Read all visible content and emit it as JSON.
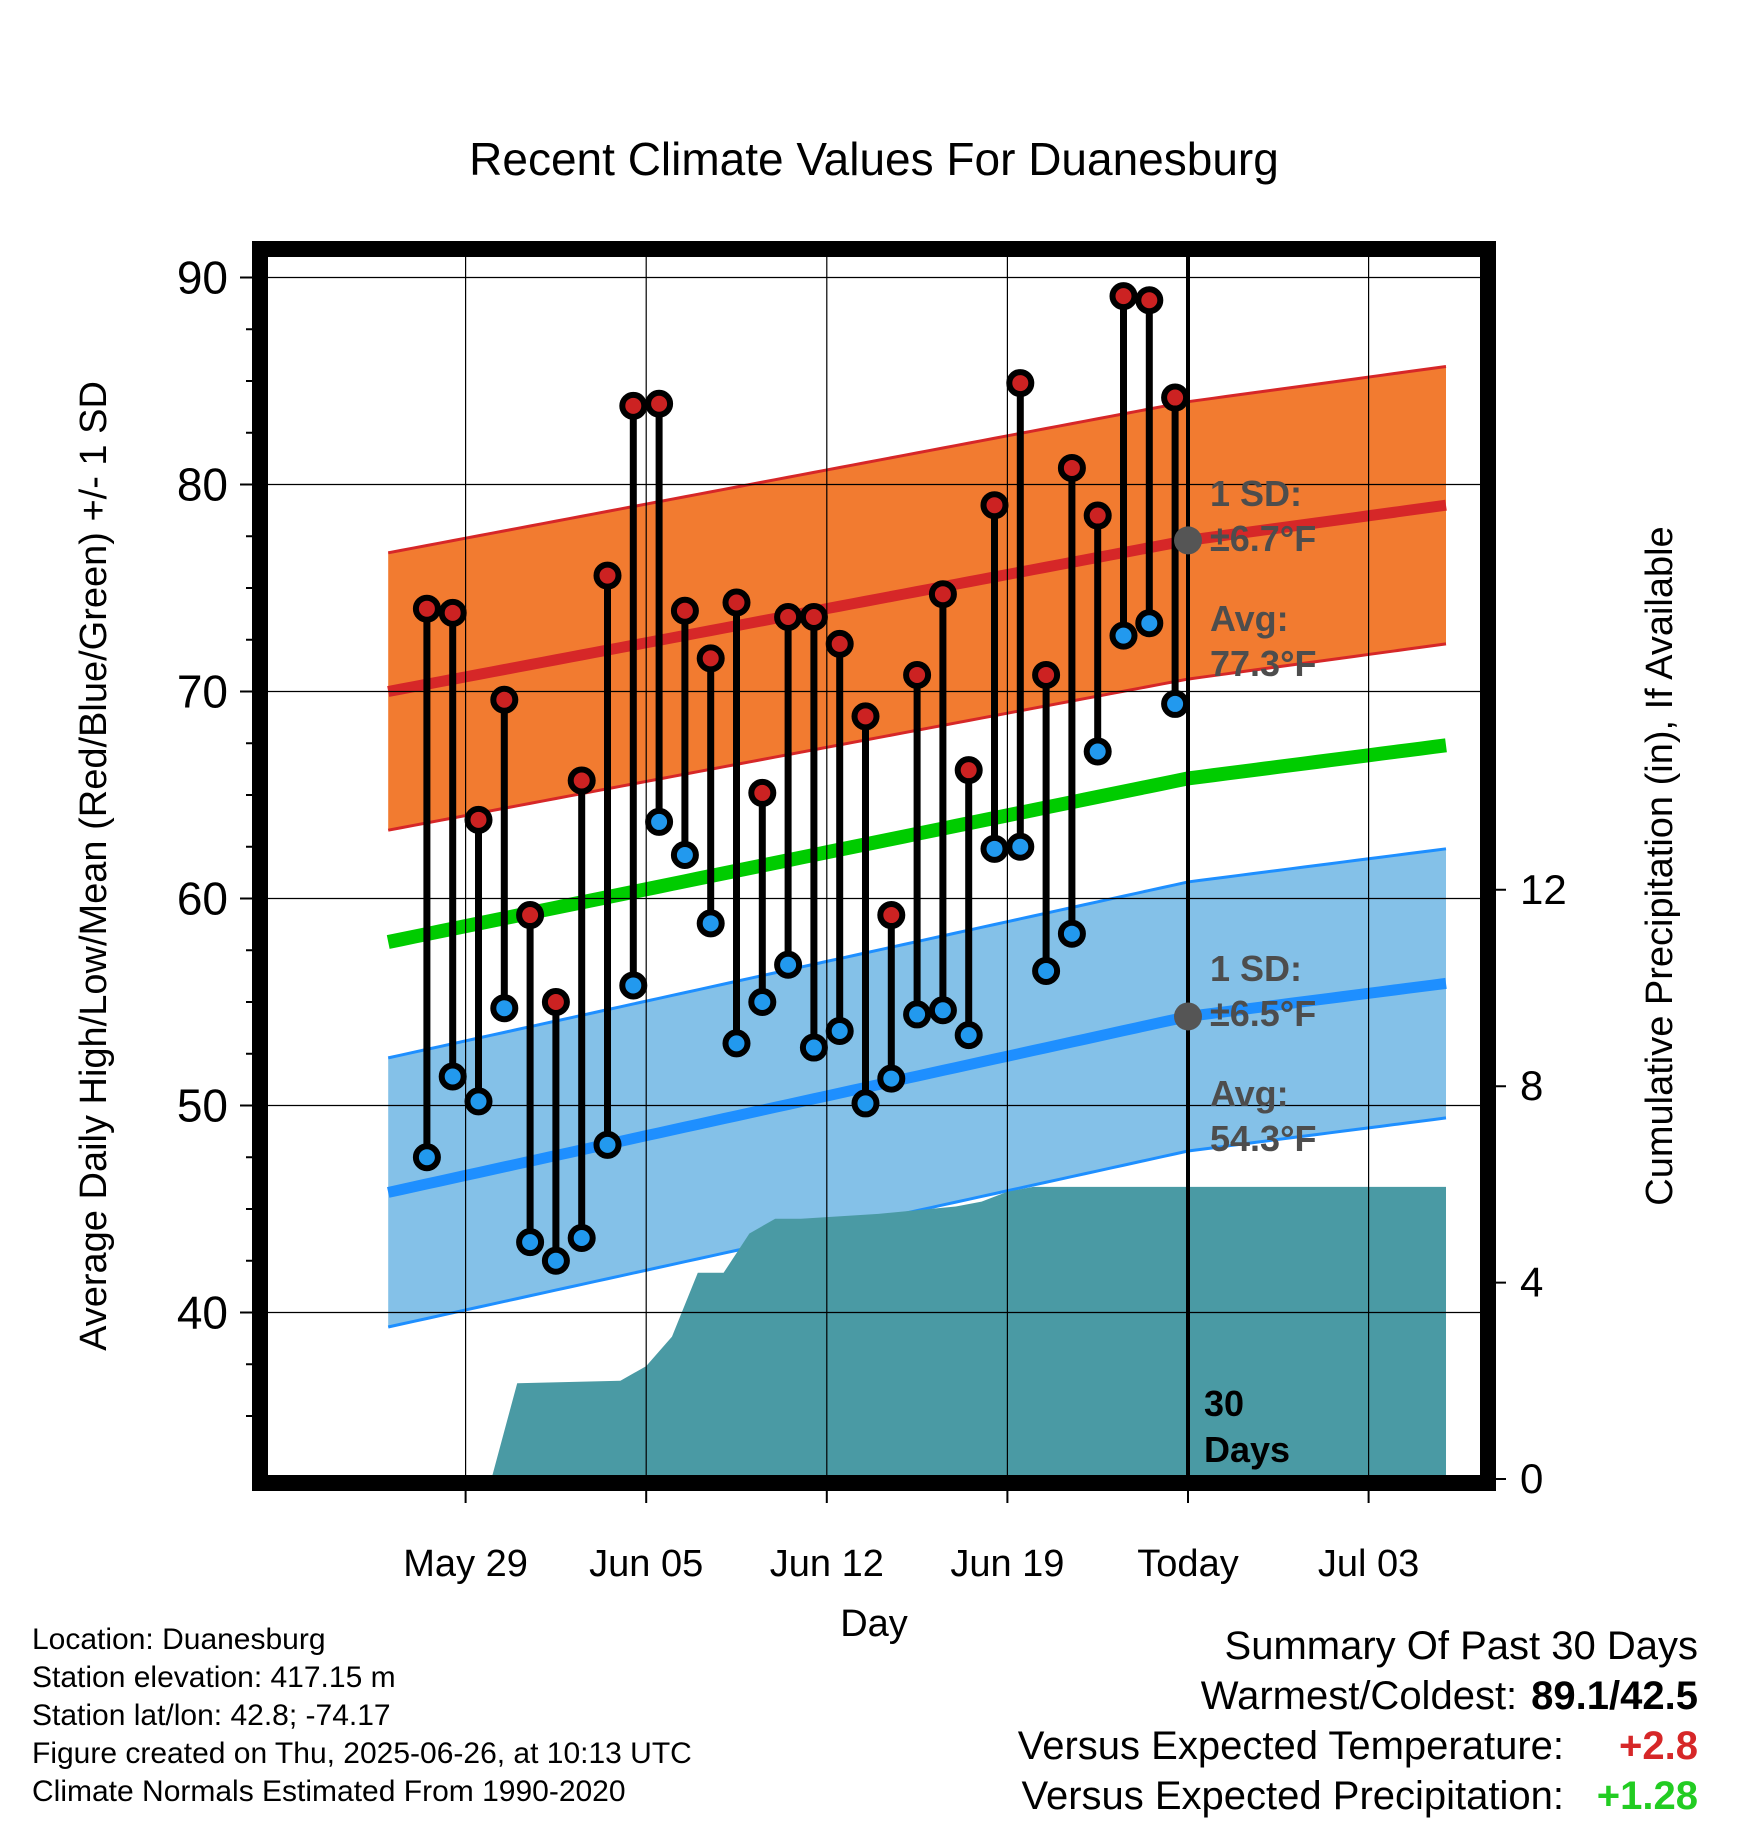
{
  "chart_data": {
    "type": "line",
    "title": "Recent Climate Values For Duanesburg",
    "xlabel": "Day",
    "ylabel": "Average Daily High/Low/Mean (Red/Blue/Green) +/- 1 SD",
    "y2label": "Cumulative Precipitation (in), If Available",
    "x_tick_labels": [
      "May 29",
      "Jun 05",
      "Jun 12",
      "Jun 19",
      "Today",
      "Jul 03"
    ],
    "y_ticks": [
      "40",
      "50",
      "60",
      "70",
      "80",
      "90"
    ],
    "y2_ticks": [
      "0",
      "4",
      "8",
      "12"
    ],
    "ylim": [
      35,
      95
    ],
    "y2lim": [
      0,
      20
    ],
    "days": [
      -30,
      -29,
      -28,
      -27,
      -26,
      -25,
      -24,
      -23,
      -22,
      -21,
      -20,
      -19,
      -18,
      -17,
      -16,
      -15,
      -14,
      -13,
      -12,
      -11,
      -10,
      -9,
      -8,
      -7,
      -6,
      -5,
      -4,
      -3,
      -2,
      -1
    ],
    "daily_high": [
      74.0,
      73.8,
      63.8,
      69.6,
      59.2,
      55.0,
      65.7,
      75.6,
      83.8,
      83.9,
      73.9,
      71.6,
      74.3,
      65.1,
      73.6,
      73.6,
      72.3,
      68.8,
      59.2,
      70.8,
      74.7,
      66.2,
      79.0,
      84.9,
      70.8,
      80.8,
      78.5,
      89.1,
      88.9,
      84.2
    ],
    "daily_low": [
      47.5,
      51.4,
      50.2,
      54.7,
      43.4,
      42.5,
      43.6,
      48.1,
      55.8,
      63.7,
      62.1,
      58.8,
      53.0,
      55.0,
      56.8,
      52.8,
      53.6,
      50.1,
      51.3,
      54.4,
      54.6,
      53.4,
      62.4,
      62.5,
      56.5,
      58.3,
      67.1,
      72.7,
      73.3,
      69.4
    ],
    "normal_high_x": [
      -31,
      0,
      10
    ],
    "normal_high": [
      70.0,
      77.3,
      79.0
    ],
    "normal_high_sd": 6.7,
    "normal_low_x": [
      -31,
      0,
      10
    ],
    "normal_low": [
      45.8,
      54.3,
      55.9
    ],
    "normal_low_sd": 6.5,
    "normal_mean_x": [
      -31,
      0,
      10
    ],
    "normal_mean": [
      57.9,
      65.8,
      67.4
    ],
    "precip_x": [
      -27,
      -26,
      -22,
      -21,
      -20,
      -19,
      -18,
      -17,
      -16,
      -15,
      -12,
      -9,
      -8,
      -7,
      -6,
      -3,
      10
    ],
    "precip_cumulative": [
      0.0,
      1.95,
      2.0,
      2.3,
      2.9,
      4.2,
      4.2,
      5.0,
      5.3,
      5.3,
      5.4,
      5.55,
      5.65,
      5.85,
      5.95,
      5.95,
      5.95
    ],
    "annotations": {
      "high_sd_line1": "1 SD:",
      "high_sd_line2": "±6.7°F",
      "high_avg_line1": "Avg:",
      "high_avg_line2": "77.3°F",
      "low_sd_line1": "1 SD:",
      "low_sd_line2": "±6.5°F",
      "low_avg_line1": "Avg:",
      "low_avg_line2": "54.3°F",
      "days_line1": "30",
      "days_line2": "Days"
    },
    "colors": {
      "high_band": "#f27b30",
      "high_line": "#d62728",
      "low_band": "#84c1e8",
      "low_line": "#1e8fff",
      "mean_line": "#00cc00",
      "precip": "#4a9aa4",
      "high_dot": "#cc2222",
      "low_dot": "#2299ee",
      "annotation": "#4d4d4d"
    }
  },
  "info": {
    "location": "Location: Duanesburg",
    "elevation": "Station elevation: 417.15 m",
    "latlon": "Station lat/lon: 42.8; -74.17",
    "created": "Figure created on Thu, 2025-06-26, at 10:13 UTC",
    "normals": "Climate Normals Estimated From 1990-2020"
  },
  "summary": {
    "title": "Summary Of Past 30 Days",
    "warmest_label": "Warmest/Coldest:",
    "warmest_value": "89.1/42.5",
    "temp_label": "Versus Expected Temperature:",
    "temp_value": "+2.8",
    "temp_color": "#d62728",
    "precip_label": "Versus Expected Precipitation:",
    "precip_value": "+1.28",
    "precip_color": "#22cc22"
  }
}
